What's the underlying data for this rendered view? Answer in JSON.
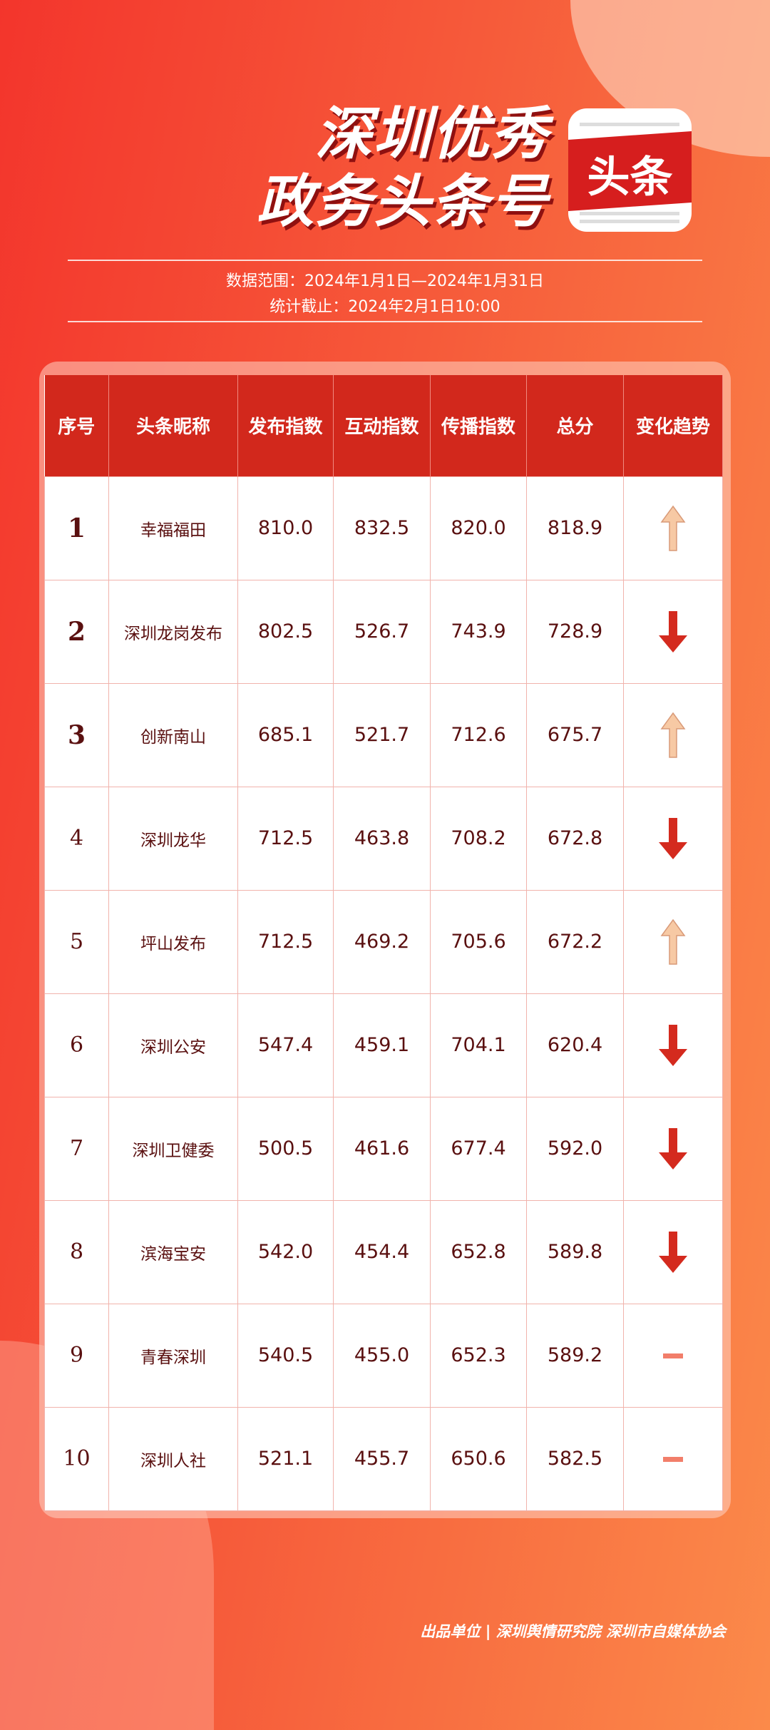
{
  "title": {
    "line1": "深圳优秀",
    "line2": "政务头条号"
  },
  "logo": {
    "text": "头条"
  },
  "meta": {
    "range": "数据范围：2024年1月1日—2024年1月31日",
    "cutoff": "统计截止：2024年2月1日10:00"
  },
  "table": {
    "headers": [
      "序号",
      "头条昵称",
      "发布指数",
      "互动指数",
      "传播指数",
      "总分",
      "变化趋势"
    ],
    "rows": [
      {
        "rank": "1",
        "name": "幸福福田",
        "publish": "810.0",
        "interact": "832.5",
        "spread": "820.0",
        "total": "818.9",
        "trend": "up"
      },
      {
        "rank": "2",
        "name": "深圳龙岗发布",
        "publish": "802.5",
        "interact": "526.7",
        "spread": "743.9",
        "total": "728.9",
        "trend": "down"
      },
      {
        "rank": "3",
        "name": "创新南山",
        "publish": "685.1",
        "interact": "521.7",
        "spread": "712.6",
        "total": "675.7",
        "trend": "up"
      },
      {
        "rank": "4",
        "name": "深圳龙华",
        "publish": "712.5",
        "interact": "463.8",
        "spread": "708.2",
        "total": "672.8",
        "trend": "down"
      },
      {
        "rank": "5",
        "name": "坪山发布",
        "publish": "712.5",
        "interact": "469.2",
        "spread": "705.6",
        "total": "672.2",
        "trend": "up"
      },
      {
        "rank": "6",
        "name": "深圳公安",
        "publish": "547.4",
        "interact": "459.1",
        "spread": "704.1",
        "total": "620.4",
        "trend": "down"
      },
      {
        "rank": "7",
        "name": "深圳卫健委",
        "publish": "500.5",
        "interact": "461.6",
        "spread": "677.4",
        "total": "592.0",
        "trend": "down"
      },
      {
        "rank": "8",
        "name": "滨海宝安",
        "publish": "542.0",
        "interact": "454.4",
        "spread": "652.8",
        "total": "589.8",
        "trend": "down"
      },
      {
        "rank": "9",
        "name": "青春深圳",
        "publish": "540.5",
        "interact": "455.0",
        "spread": "652.3",
        "total": "589.2",
        "trend": "flat"
      },
      {
        "rank": "10",
        "name": "深圳人社",
        "publish": "521.1",
        "interact": "455.7",
        "spread": "650.6",
        "total": "582.5",
        "trend": "flat"
      }
    ]
  },
  "colors": {
    "up": "#f7c9a4",
    "down": "#d42a1e",
    "flat": "#f27e6a",
    "header": "#d2281c"
  },
  "footer": "出品单位 | 深圳舆情研究院 深圳市自媒体协会"
}
